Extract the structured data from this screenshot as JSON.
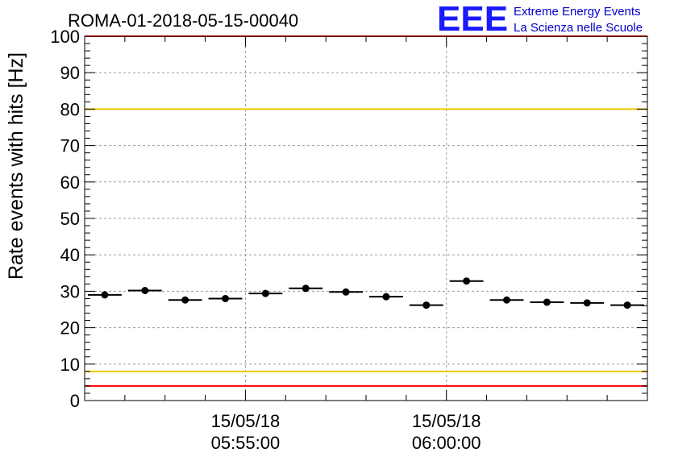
{
  "chart_data": {
    "type": "scatter",
    "title": "ROMA-01-2018-05-15-00040",
    "ylabel": "Rate events with hits [Hz]",
    "xlabel": "",
    "ylim": [
      0,
      100
    ],
    "yticks": [
      0,
      10,
      20,
      30,
      40,
      50,
      60,
      70,
      80,
      90,
      100
    ],
    "xlim": [
      "05:51:00",
      "06:05:00"
    ],
    "xticks": [
      {
        "date": "15/05/18",
        "time": "05:55:00"
      },
      {
        "date": "15/05/18",
        "time": "06:00:00"
      }
    ],
    "grid": true,
    "x": [
      "05:51:30",
      "05:52:30",
      "05:53:30",
      "05:54:30",
      "05:55:30",
      "05:56:30",
      "05:57:30",
      "05:58:30",
      "05:59:30",
      "06:00:30",
      "06:01:30",
      "06:02:30",
      "06:03:30",
      "06:04:30"
    ],
    "bin_width_seconds": 60,
    "values": [
      29.0,
      30.2,
      27.6,
      28.0,
      29.4,
      30.8,
      29.8,
      28.5,
      26.2,
      32.8,
      27.6,
      27.0,
      26.8,
      26.2
    ],
    "reference_lines": [
      {
        "y": 100,
        "color": "#ff0000"
      },
      {
        "y": 80,
        "color": "#f0c800"
      },
      {
        "y": 8,
        "color": "#f0c800"
      },
      {
        "y": 4,
        "color": "#ff0000"
      }
    ]
  },
  "logo": {
    "mark": "EEE",
    "line1": "Extreme Energy Events",
    "line2": "La Scienza nelle Scuole",
    "color": "#0000cc"
  }
}
